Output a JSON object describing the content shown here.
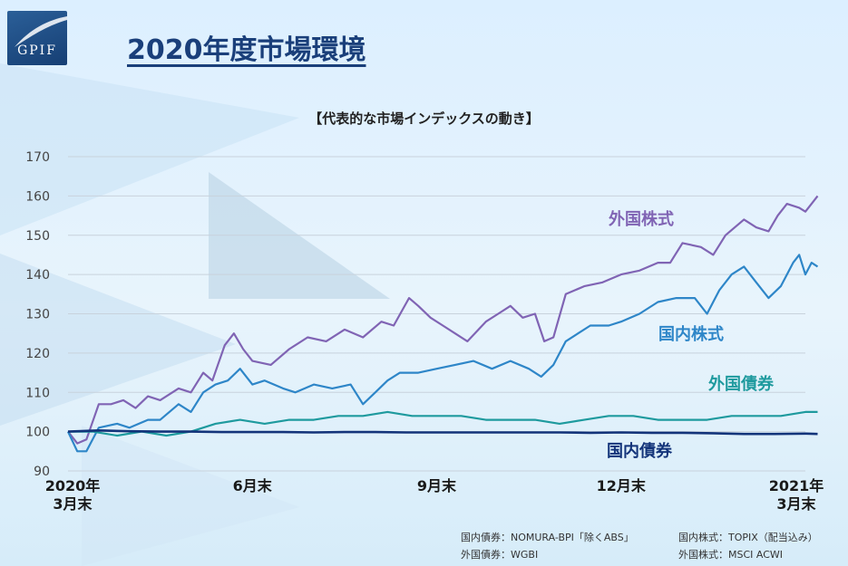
{
  "logo": {
    "text": "GPIF"
  },
  "page_title": "2020年度市場環境",
  "chart_data": {
    "type": "line",
    "title": "【代表的な市場インデックスの動き】",
    "ylim": [
      90,
      170
    ],
    "yticks": [
      90,
      100,
      110,
      120,
      130,
      140,
      150,
      160,
      170
    ],
    "xlim": [
      0,
      12
    ],
    "x_tick_labels": [
      {
        "x": 0,
        "lines": [
          "2020年",
          "3月末"
        ]
      },
      {
        "x": 3,
        "lines": [
          "6月末"
        ]
      },
      {
        "x": 6,
        "lines": [
          "9月末"
        ]
      },
      {
        "x": 9,
        "lines": [
          "12月末"
        ]
      },
      {
        "x": 12,
        "lines": [
          "2021年",
          "3月末"
        ]
      }
    ],
    "grid": true,
    "series": [
      {
        "name": "外国株式",
        "color": "#8064b4",
        "points": [
          [
            0,
            100
          ],
          [
            0.15,
            97
          ],
          [
            0.3,
            98
          ],
          [
            0.5,
            107
          ],
          [
            0.7,
            107
          ],
          [
            0.9,
            108
          ],
          [
            1.1,
            106
          ],
          [
            1.3,
            109
          ],
          [
            1.5,
            108
          ],
          [
            1.8,
            111
          ],
          [
            2.0,
            110
          ],
          [
            2.2,
            115
          ],
          [
            2.35,
            113
          ],
          [
            2.55,
            122
          ],
          [
            2.7,
            125
          ],
          [
            2.85,
            121
          ],
          [
            3.0,
            118
          ],
          [
            3.3,
            117
          ],
          [
            3.6,
            121
          ],
          [
            3.9,
            124
          ],
          [
            4.2,
            123
          ],
          [
            4.5,
            126
          ],
          [
            4.8,
            124
          ],
          [
            5.1,
            128
          ],
          [
            5.3,
            127
          ],
          [
            5.55,
            134
          ],
          [
            5.7,
            132
          ],
          [
            5.9,
            129
          ],
          [
            6.1,
            127
          ],
          [
            6.3,
            125
          ],
          [
            6.5,
            123
          ],
          [
            6.8,
            128
          ],
          [
            7.0,
            130
          ],
          [
            7.2,
            132
          ],
          [
            7.4,
            129
          ],
          [
            7.6,
            130
          ],
          [
            7.75,
            123
          ],
          [
            7.9,
            124
          ],
          [
            8.1,
            135
          ],
          [
            8.4,
            137
          ],
          [
            8.7,
            138
          ],
          [
            9.0,
            140
          ],
          [
            9.3,
            141
          ],
          [
            9.6,
            143
          ],
          [
            9.8,
            143
          ],
          [
            10.0,
            148
          ],
          [
            10.3,
            147
          ],
          [
            10.5,
            145
          ],
          [
            10.7,
            150
          ],
          [
            11.0,
            154
          ],
          [
            11.2,
            152
          ],
          [
            11.4,
            151
          ],
          [
            11.55,
            155
          ],
          [
            11.7,
            158
          ],
          [
            11.9,
            157
          ],
          [
            12.0,
            156
          ],
          [
            12.1,
            158
          ],
          [
            12.2,
            160
          ]
        ]
      },
      {
        "name": "国内株式",
        "color": "#2e86c8",
        "points": [
          [
            0,
            100
          ],
          [
            0.15,
            95
          ],
          [
            0.3,
            95
          ],
          [
            0.5,
            101
          ],
          [
            0.8,
            102
          ],
          [
            1.0,
            101
          ],
          [
            1.3,
            103
          ],
          [
            1.5,
            103
          ],
          [
            1.8,
            107
          ],
          [
            2.0,
            105
          ],
          [
            2.2,
            110
          ],
          [
            2.4,
            112
          ],
          [
            2.6,
            113
          ],
          [
            2.8,
            116
          ],
          [
            3.0,
            112
          ],
          [
            3.2,
            113
          ],
          [
            3.5,
            111
          ],
          [
            3.7,
            110
          ],
          [
            4.0,
            112
          ],
          [
            4.3,
            111
          ],
          [
            4.6,
            112
          ],
          [
            4.8,
            107
          ],
          [
            5.0,
            110
          ],
          [
            5.2,
            113
          ],
          [
            5.4,
            115
          ],
          [
            5.7,
            115
          ],
          [
            6.0,
            116
          ],
          [
            6.3,
            117
          ],
          [
            6.6,
            118
          ],
          [
            6.9,
            116
          ],
          [
            7.2,
            118
          ],
          [
            7.5,
            116
          ],
          [
            7.7,
            114
          ],
          [
            7.9,
            117
          ],
          [
            8.1,
            123
          ],
          [
            8.3,
            125
          ],
          [
            8.5,
            127
          ],
          [
            8.8,
            127
          ],
          [
            9.0,
            128
          ],
          [
            9.3,
            130
          ],
          [
            9.6,
            133
          ],
          [
            9.9,
            134
          ],
          [
            10.2,
            134
          ],
          [
            10.4,
            130
          ],
          [
            10.6,
            136
          ],
          [
            10.8,
            140
          ],
          [
            11.0,
            142
          ],
          [
            11.2,
            138
          ],
          [
            11.4,
            134
          ],
          [
            11.6,
            137
          ],
          [
            11.8,
            143
          ],
          [
            11.9,
            145
          ],
          [
            12.0,
            140
          ],
          [
            12.1,
            143
          ],
          [
            12.2,
            142
          ]
        ]
      },
      {
        "name": "外国債券",
        "color": "#1e9a9e",
        "points": [
          [
            0,
            100
          ],
          [
            0.4,
            100
          ],
          [
            0.8,
            99
          ],
          [
            1.2,
            100
          ],
          [
            1.6,
            99
          ],
          [
            2.0,
            100
          ],
          [
            2.4,
            102
          ],
          [
            2.8,
            103
          ],
          [
            3.2,
            102
          ],
          [
            3.6,
            103
          ],
          [
            4.0,
            103
          ],
          [
            4.4,
            104
          ],
          [
            4.8,
            104
          ],
          [
            5.2,
            105
          ],
          [
            5.6,
            104
          ],
          [
            6.0,
            104
          ],
          [
            6.4,
            104
          ],
          [
            6.8,
            103
          ],
          [
            7.2,
            103
          ],
          [
            7.6,
            103
          ],
          [
            8.0,
            102
          ],
          [
            8.4,
            103
          ],
          [
            8.8,
            104
          ],
          [
            9.2,
            104
          ],
          [
            9.6,
            103
          ],
          [
            10.0,
            103
          ],
          [
            10.4,
            103
          ],
          [
            10.8,
            104
          ],
          [
            11.2,
            104
          ],
          [
            11.6,
            104
          ],
          [
            12.0,
            105
          ],
          [
            12.2,
            105
          ]
        ]
      },
      {
        "name": "国内債券",
        "color": "#13347a",
        "points": [
          [
            0,
            100
          ],
          [
            0.5,
            100.3
          ],
          [
            1.0,
            100.1
          ],
          [
            1.5,
            100
          ],
          [
            2.0,
            100
          ],
          [
            2.5,
            99.9
          ],
          [
            3.0,
            99.9
          ],
          [
            3.5,
            99.9
          ],
          [
            4.0,
            99.8
          ],
          [
            4.5,
            99.9
          ],
          [
            5.0,
            99.9
          ],
          [
            5.5,
            99.8
          ],
          [
            6.0,
            99.8
          ],
          [
            6.5,
            99.8
          ],
          [
            7.0,
            99.8
          ],
          [
            7.5,
            99.8
          ],
          [
            8.0,
            99.8
          ],
          [
            8.5,
            99.7
          ],
          [
            9.0,
            99.8
          ],
          [
            9.5,
            99.7
          ],
          [
            10.0,
            99.7
          ],
          [
            10.5,
            99.6
          ],
          [
            11.0,
            99.4
          ],
          [
            11.5,
            99.4
          ],
          [
            12.0,
            99.5
          ],
          [
            12.2,
            99.4
          ]
        ]
      }
    ]
  },
  "source_notes": [
    "国内債券：NOMURA-BPI「除くABS」",
    "国内株式：TOPIX（配当込み）",
    "外国債券：WGBI",
    "外国株式：MSCI ACWI"
  ]
}
